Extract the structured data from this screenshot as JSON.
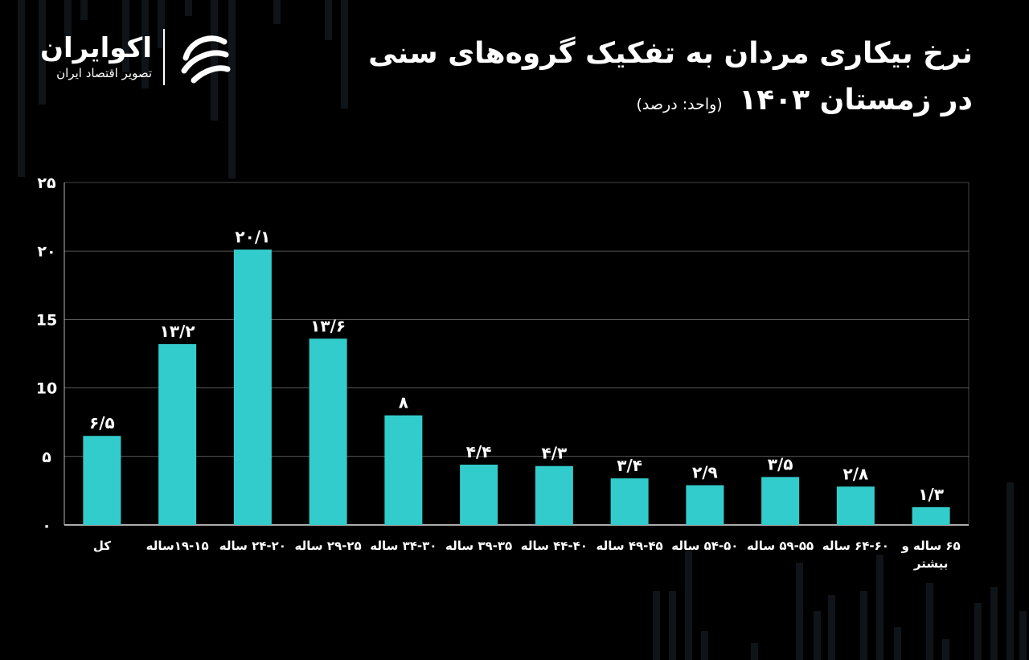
{
  "header": {
    "title_line1": "نرخ بیکاری مردان به تفکیک گروه‌های سنی",
    "title_line2": "در زمستان ۱۴۰۳",
    "unit": "(واحد: درصد)"
  },
  "logo": {
    "name": "اکوایران",
    "tagline": "تصویر اقتصاد ایران",
    "icon": "ecoiran-logo-icon"
  },
  "colors": {
    "background": "#000000",
    "bar": "#33cccc",
    "text": "#ffffff",
    "grid": "#ffffff"
  },
  "chart_data": {
    "type": "bar",
    "categories": [
      "کل",
      "۱۹-۱۵ساله",
      "۲۴-۲۰ ساله",
      "۲۹-۲۵ ساله",
      "۳۴-۳۰ ساله",
      "۳۹-۳۵ ساله",
      "۴۴-۴۰ ساله",
      "۴۹-۴۵ ساله",
      "۵۴-۵۰ ساله",
      "۵۹-۵۵ ساله",
      "۶۴-۶۰ ساله",
      "۶۵ ساله و بیشتر"
    ],
    "values": [
      6.5,
      13.2,
      20.1,
      13.6,
      8,
      4.4,
      4.3,
      3.4,
      2.9,
      3.5,
      2.8,
      1.3
    ],
    "data_labels": [
      "۶/۵",
      "۱۳/۲",
      "۲۰/۱",
      "۱۳/۶",
      "۸",
      "۴/۴",
      "۴/۳",
      "۳/۴",
      "۲/۹",
      "۳/۵",
      "۲/۸",
      "۱/۳"
    ],
    "y_ticks": [
      0,
      5,
      10,
      15,
      20,
      25
    ],
    "y_tick_labels": [
      "۰",
      "۵",
      "10",
      "15",
      "۲۰",
      "۲۵"
    ],
    "ylim": [
      0,
      25
    ],
    "grid": true,
    "title": "نرخ بیکاری مردان به تفکیک گروه‌های سنی در زمستان ۱۴۰۳",
    "xlabel": "",
    "ylabel": ""
  }
}
